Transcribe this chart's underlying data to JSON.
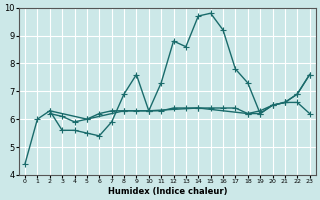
{
  "xlabel": "Humidex (Indice chaleur)",
  "bg_color": "#cce8e8",
  "grid_color": "#ffffff",
  "line_color": "#1a6b6b",
  "xlim": [
    -0.5,
    23.5
  ],
  "ylim": [
    4,
    10
  ],
  "xticks": [
    0,
    1,
    2,
    3,
    4,
    5,
    6,
    7,
    8,
    9,
    10,
    11,
    12,
    13,
    14,
    15,
    16,
    17,
    18,
    19,
    20,
    21,
    22,
    23
  ],
  "yticks": [
    4,
    5,
    6,
    7,
    8,
    9,
    10
  ],
  "series1_x": [
    0,
    1,
    2,
    3,
    4,
    5,
    6,
    7,
    8,
    9,
    10,
    11,
    12,
    13,
    14,
    15,
    16,
    17,
    18,
    19,
    20,
    21,
    22,
    23
  ],
  "series1_y": [
    4.4,
    6.0,
    6.3,
    5.6,
    5.6,
    5.5,
    5.4,
    5.9,
    6.9,
    7.6,
    6.3,
    7.3,
    8.8,
    8.6,
    9.7,
    9.8,
    9.2,
    7.8,
    7.3,
    6.2,
    6.5,
    6.6,
    6.9,
    7.6
  ],
  "series2_x": [
    2,
    3,
    4,
    5,
    6,
    7,
    8,
    9,
    10,
    11,
    12,
    13,
    14,
    15,
    16,
    17,
    18,
    19,
    20,
    21,
    22,
    23
  ],
  "series2_y": [
    6.2,
    6.1,
    5.9,
    6.0,
    6.2,
    6.3,
    6.3,
    6.3,
    6.3,
    6.3,
    6.4,
    6.4,
    6.4,
    6.4,
    6.4,
    6.4,
    6.2,
    6.2,
    6.5,
    6.6,
    6.6,
    6.2
  ],
  "series3_x": [
    2,
    5,
    8,
    10,
    14,
    18,
    19,
    20,
    21,
    22,
    23
  ],
  "series3_y": [
    6.3,
    6.0,
    6.3,
    6.3,
    6.4,
    6.2,
    6.3,
    6.5,
    6.6,
    6.9,
    7.6
  ],
  "marker_size": 4,
  "linewidth": 1.0
}
